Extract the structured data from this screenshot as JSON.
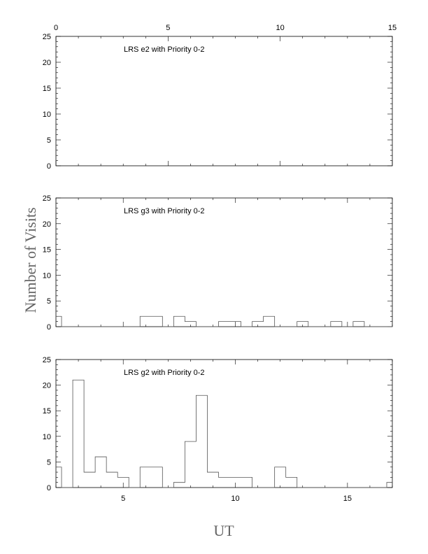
{
  "chart_data": {
    "type": "histogram",
    "ylabel": "Number of Visits",
    "xlabel": "UT",
    "panels": [
      {
        "title": "LRS e2 with Priority 0-2",
        "x_range": [
          0,
          15
        ],
        "x_ticks": [
          0,
          5,
          10,
          15
        ],
        "x_tick_labels_on": "top",
        "ylim": [
          0,
          25
        ],
        "y_ticks": [
          0,
          5,
          10,
          15,
          20,
          25
        ],
        "bins": []
      },
      {
        "title": "LRS g3 with Priority 0-2",
        "x_range": [
          2,
          17
        ],
        "x_ticks": [
          5,
          10,
          15
        ],
        "ylim": [
          0,
          25
        ],
        "y_ticks": [
          0,
          5,
          10,
          15,
          20,
          25
        ],
        "bins": [
          {
            "x0": 2.0,
            "x1": 2.25,
            "count": 2
          },
          {
            "x0": 2.25,
            "x1": 5.75,
            "count": 0
          },
          {
            "x0": 5.75,
            "x1": 6.75,
            "count": 2
          },
          {
            "x0": 6.75,
            "x1": 7.25,
            "count": 0
          },
          {
            "x0": 7.25,
            "x1": 7.75,
            "count": 2
          },
          {
            "x0": 7.75,
            "x1": 8.25,
            "count": 1
          },
          {
            "x0": 8.25,
            "x1": 9.25,
            "count": 0
          },
          {
            "x0": 9.25,
            "x1": 10.25,
            "count": 1
          },
          {
            "x0": 10.25,
            "x1": 10.75,
            "count": 0
          },
          {
            "x0": 10.75,
            "x1": 11.25,
            "count": 1
          },
          {
            "x0": 11.25,
            "x1": 11.75,
            "count": 2
          },
          {
            "x0": 11.75,
            "x1": 12.75,
            "count": 0
          },
          {
            "x0": 12.75,
            "x1": 13.25,
            "count": 1
          },
          {
            "x0": 13.25,
            "x1": 14.25,
            "count": 0
          },
          {
            "x0": 14.25,
            "x1": 14.75,
            "count": 1
          },
          {
            "x0": 14.75,
            "x1": 15.25,
            "count": 0
          },
          {
            "x0": 15.25,
            "x1": 15.75,
            "count": 1
          },
          {
            "x0": 15.75,
            "x1": 17.0,
            "count": 0
          }
        ]
      },
      {
        "title": "LRS g2 with Priority 0-2",
        "x_range": [
          2,
          17
        ],
        "x_ticks": [
          5,
          10,
          15
        ],
        "x_tick_labels_on": "bottom",
        "ylim": [
          0,
          25
        ],
        "y_ticks": [
          0,
          5,
          10,
          15,
          20,
          25
        ],
        "bins": [
          {
            "x0": 2.0,
            "x1": 2.25,
            "count": 4
          },
          {
            "x0": 2.25,
            "x1": 2.75,
            "count": 0
          },
          {
            "x0": 2.75,
            "x1": 3.25,
            "count": 21
          },
          {
            "x0": 3.25,
            "x1": 3.75,
            "count": 3
          },
          {
            "x0": 3.75,
            "x1": 4.25,
            "count": 6
          },
          {
            "x0": 4.25,
            "x1": 4.75,
            "count": 3
          },
          {
            "x0": 4.75,
            "x1": 5.25,
            "count": 2
          },
          {
            "x0": 5.25,
            "x1": 5.75,
            "count": 0
          },
          {
            "x0": 5.75,
            "x1": 6.75,
            "count": 4
          },
          {
            "x0": 6.75,
            "x1": 7.25,
            "count": 0
          },
          {
            "x0": 7.25,
            "x1": 7.75,
            "count": 1
          },
          {
            "x0": 7.75,
            "x1": 8.25,
            "count": 9
          },
          {
            "x0": 8.25,
            "x1": 8.75,
            "count": 18
          },
          {
            "x0": 8.75,
            "x1": 9.25,
            "count": 3
          },
          {
            "x0": 9.25,
            "x1": 10.75,
            "count": 2
          },
          {
            "x0": 10.75,
            "x1": 11.75,
            "count": 0
          },
          {
            "x0": 11.75,
            "x1": 12.25,
            "count": 4
          },
          {
            "x0": 12.25,
            "x1": 12.75,
            "count": 2
          },
          {
            "x0": 12.75,
            "x1": 16.75,
            "count": 0
          },
          {
            "x0": 16.75,
            "x1": 17.0,
            "count": 1
          }
        ]
      }
    ]
  }
}
